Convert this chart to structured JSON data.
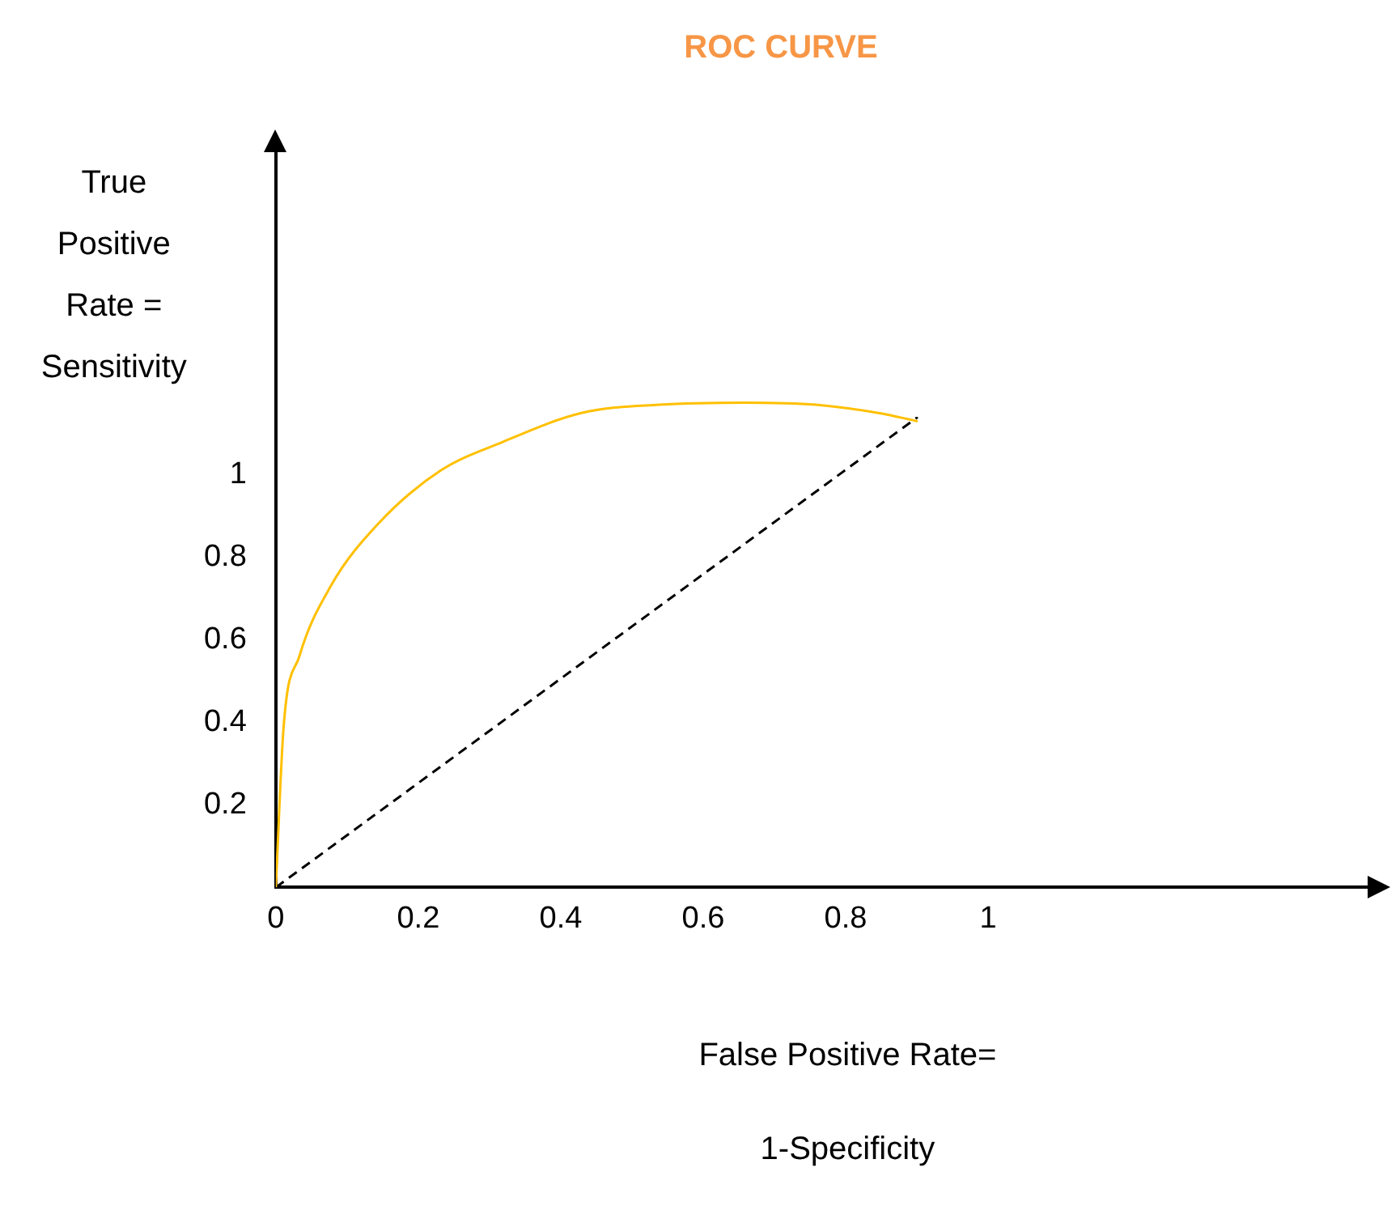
{
  "chart_data": {
    "type": "line",
    "title": "ROC CURVE",
    "xlabel": "False Positive Rate= 1-Specificity",
    "ylabel": "True Positive Rate = Sensitivity",
    "xlim": [
      0,
      1.56
    ],
    "ylim": [
      0,
      1.79
    ],
    "xticks": [
      0,
      0.2,
      0.4,
      0.6,
      0.8,
      1
    ],
    "yticks": [
      0.2,
      0.4,
      0.6,
      0.8,
      1
    ],
    "marker": "none",
    "series": [
      {
        "type": "line",
        "color": "#ffc000",
        "line_style": "solid",
        "x": [
          0,
          0.011,
          0.033,
          0.077,
          0.143,
          0.231,
          0.319,
          0.429,
          0.538,
          0.659,
          0.758,
          0.846,
          0.901
        ],
        "values": [
          0,
          0.39,
          0.56,
          0.73,
          0.88,
          1.01,
          1.08,
          1.15,
          1.17,
          1.175,
          1.17,
          1.15,
          1.13
        ]
      },
      {
        "type": "line",
        "color": "#000000",
        "line_style": "dashed",
        "x": [
          0,
          0.901
        ],
        "values": [
          0,
          1.14
        ]
      }
    ]
  }
}
